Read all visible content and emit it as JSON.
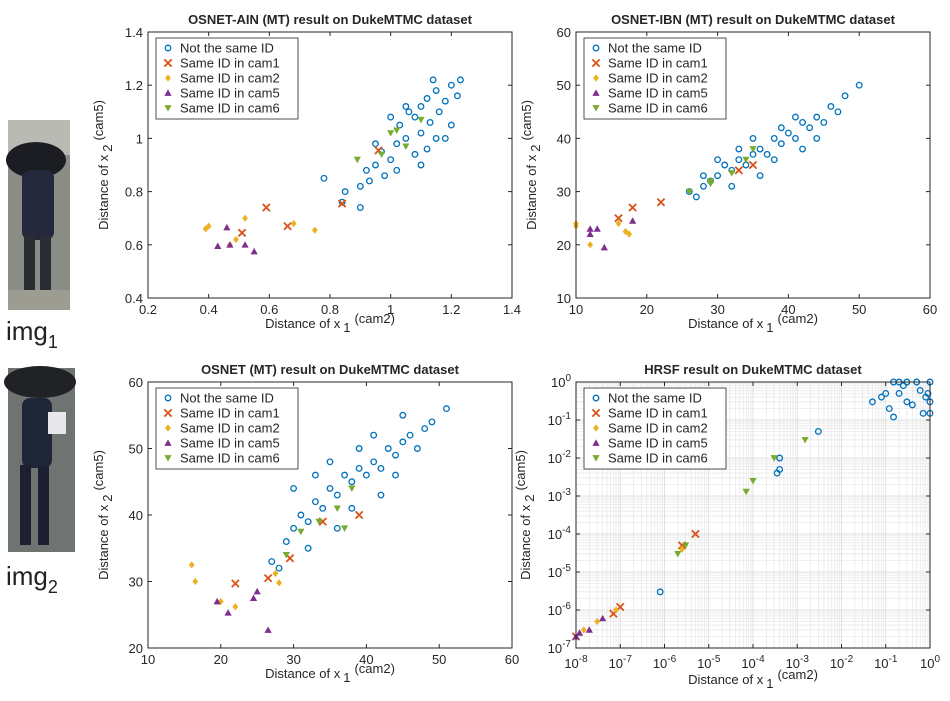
{
  "chart_data": [
    {
      "type": "scatter",
      "title": "OSNET-AIN (MT) result on DukeMTMC dataset",
      "xlabel": "Distance of x",
      "xlabel_subscript": "1",
      "xlabel_superscript": "(cam2)",
      "ylabel": "Distance of x",
      "ylabel_subscript": "2",
      "ylabel_superscript": "(cam5)",
      "xlim": [
        0.2,
        1.4
      ],
      "ylim": [
        0.4,
        1.4
      ],
      "xticks": [
        0.2,
        0.4,
        0.6,
        0.8,
        1,
        1.2,
        1.4
      ],
      "yticks": [
        0.4,
        0.6,
        0.8,
        1,
        1.2,
        1.4
      ],
      "grid": false,
      "legend": "upper-left",
      "series": [
        {
          "name": "Not the same ID",
          "color": "#0072bd",
          "marker": "circle",
          "x": [
            0.85,
            0.9,
            0.92,
            0.95,
            0.97,
            0.98,
            1.0,
            1.02,
            1.03,
            1.05,
            1.06,
            1.08,
            1.1,
            1.1,
            1.12,
            1.13,
            1.15,
            1.16,
            1.18,
            1.2,
            1.22,
            1.2,
            1.15,
            1.12,
            1.08,
            1.05,
            1.0,
            0.95,
            0.93,
            1.1,
            1.14,
            1.18,
            1.02,
            0.78,
            0.84,
            0.9,
            1.23
          ],
          "values": [
            0.8,
            0.82,
            0.88,
            0.9,
            0.95,
            0.86,
            0.92,
            0.98,
            1.05,
            1.0,
            1.1,
            1.08,
            1.12,
            1.02,
            1.15,
            1.06,
            1.18,
            1.1,
            1.14,
            1.2,
            1.16,
            1.05,
            1.0,
            0.96,
            0.94,
            1.12,
            1.08,
            0.98,
            0.84,
            0.9,
            1.22,
            1.0,
            0.88,
            0.85,
            0.76,
            0.74,
            1.22
          ]
        },
        {
          "name": "Same ID in cam1",
          "color": "#d95319",
          "marker": "x",
          "x": [
            0.59,
            0.51,
            0.66,
            0.84,
            0.96
          ],
          "values": [
            0.74,
            0.645,
            0.67,
            0.755,
            0.955
          ]
        },
        {
          "name": "Same ID in cam2",
          "color": "#edb120",
          "marker": "diamond",
          "x": [
            0.4,
            0.39,
            0.52,
            0.49,
            0.68,
            0.75,
            0.47
          ],
          "values": [
            0.67,
            0.66,
            0.7,
            0.62,
            0.68,
            0.655,
            0.6
          ]
        },
        {
          "name": "Same ID in cam5",
          "color": "#7e2f8e",
          "marker": "triangle-up",
          "x": [
            0.43,
            0.47,
            0.46,
            0.52,
            0.55
          ],
          "values": [
            0.595,
            0.6,
            0.665,
            0.6,
            0.575
          ]
        },
        {
          "name": "Same ID in cam6",
          "color": "#77ac30",
          "marker": "triangle-down",
          "x": [
            0.89,
            1.0,
            1.02,
            1.05,
            1.1,
            0.97
          ],
          "values": [
            0.92,
            1.02,
            1.03,
            0.97,
            1.07,
            0.94
          ]
        }
      ]
    },
    {
      "type": "scatter",
      "title": "OSNET-IBN (MT) result on DukeMTMC dataset",
      "xlabel": "Distance of x",
      "xlabel_subscript": "1",
      "xlabel_superscript": "(cam2)",
      "ylabel": "Distance of x",
      "ylabel_subscript": "2",
      "ylabel_superscript": "(cam5)",
      "xlim": [
        10,
        60
      ],
      "ylim": [
        10,
        60
      ],
      "xticks": [
        10,
        20,
        30,
        40,
        50,
        60
      ],
      "yticks": [
        10,
        20,
        30,
        40,
        50,
        60
      ],
      "grid": false,
      "legend": "upper-left",
      "series": [
        {
          "name": "Not the same ID",
          "color": "#0072bd",
          "marker": "circle",
          "x": [
            26,
            27,
            28,
            29,
            30,
            31,
            32,
            33,
            34,
            35,
            36,
            37,
            38,
            39,
            40,
            41,
            42,
            43,
            44,
            45,
            46,
            47,
            48,
            50,
            30,
            33,
            36,
            39,
            42,
            35,
            38,
            41,
            44,
            32,
            28
          ],
          "values": [
            30,
            29,
            31,
            32,
            33,
            35,
            34,
            36,
            35,
            37,
            38,
            37,
            40,
            39,
            41,
            40,
            43,
            42,
            44,
            43,
            46,
            45,
            48,
            50,
            36,
            38,
            33,
            42,
            38,
            40,
            36,
            44,
            40,
            31,
            33
          ]
        },
        {
          "name": "Same ID in cam1",
          "color": "#d95319",
          "marker": "x",
          "x": [
            22,
            18,
            16,
            33,
            35
          ],
          "values": [
            28,
            27,
            25,
            34,
            35
          ]
        },
        {
          "name": "Same ID in cam2",
          "color": "#edb120",
          "marker": "diamond",
          "x": [
            10,
            10,
            12,
            17,
            16,
            17.5
          ],
          "values": [
            24,
            23.5,
            20,
            22.5,
            24,
            22
          ]
        },
        {
          "name": "Same ID in cam5",
          "color": "#7e2f8e",
          "marker": "triangle-up",
          "x": [
            12,
            13,
            14,
            18,
            12
          ],
          "values": [
            22,
            23,
            19.5,
            24.5,
            23
          ]
        },
        {
          "name": "Same ID in cam6",
          "color": "#77ac30",
          "marker": "triangle-down",
          "x": [
            26,
            29,
            32,
            34,
            35,
            29
          ],
          "values": [
            30,
            32,
            33.5,
            36,
            38,
            31.5
          ]
        }
      ]
    },
    {
      "type": "scatter",
      "title": "OSNET (MT) result on DukeMTMC dataset",
      "xlabel": "Distance of x",
      "xlabel_subscript": "1",
      "xlabel_superscript": "(cam2)",
      "ylabel": "Distance of x",
      "ylabel_subscript": "2",
      "ylabel_superscript": "(cam5)",
      "xlim": [
        10,
        60
      ],
      "ylim": [
        20,
        60
      ],
      "xticks": [
        10,
        20,
        30,
        40,
        50,
        60
      ],
      "yticks": [
        20,
        30,
        40,
        50,
        60
      ],
      "grid": false,
      "legend": "upper-left",
      "series": [
        {
          "name": "Not the same ID",
          "color": "#0072bd",
          "marker": "circle",
          "x": [
            27,
            28,
            29,
            30,
            31,
            32,
            33,
            34,
            35,
            36,
            37,
            38,
            39,
            40,
            41,
            42,
            43,
            44,
            45,
            46,
            47,
            48,
            49,
            51,
            30,
            33,
            36,
            39,
            42,
            35,
            38,
            41,
            44,
            32,
            45
          ],
          "values": [
            33,
            32,
            36,
            38,
            40,
            39,
            42,
            41,
            44,
            43,
            46,
            45,
            47,
            46,
            48,
            47,
            50,
            49,
            51,
            52,
            50,
            53,
            54,
            56,
            44,
            46,
            38,
            50,
            43,
            48,
            41,
            52,
            46,
            35,
            55
          ]
        },
        {
          "name": "Same ID in cam1",
          "color": "#d95319",
          "marker": "x",
          "x": [
            22,
            26.5,
            29.5,
            34,
            39
          ],
          "values": [
            29.7,
            30.5,
            33.5,
            39,
            40
          ]
        },
        {
          "name": "Same ID in cam2",
          "color": "#edb120",
          "marker": "diamond",
          "x": [
            16,
            16.5,
            22,
            27.5,
            28,
            20
          ],
          "values": [
            32.5,
            30,
            26.2,
            31.2,
            29.8,
            27
          ]
        },
        {
          "name": "Same ID in cam5",
          "color": "#7e2f8e",
          "marker": "triangle-up",
          "x": [
            19.5,
            21,
            25,
            24.5,
            26.5
          ],
          "values": [
            27,
            25.3,
            28.5,
            27.5,
            22.7
          ]
        },
        {
          "name": "Same ID in cam6",
          "color": "#77ac30",
          "marker": "triangle-down",
          "x": [
            29,
            31,
            33.5,
            36,
            37,
            38
          ],
          "values": [
            34,
            37.5,
            39,
            41,
            38,
            44
          ]
        }
      ]
    },
    {
      "type": "scatter",
      "title": "HRSF result on DukeMTMC dataset",
      "xlabel": "Distance of x",
      "xlabel_subscript": "1",
      "xlabel_superscript": "(cam2)",
      "ylabel": "Distance of x",
      "ylabel_subscript": "2",
      "ylabel_superscript": "(cam5)",
      "log_x": true,
      "log_y": true,
      "xlim": [
        1e-08,
        1
      ],
      "ylim": [
        1e-07,
        1
      ],
      "xticks": [
        {
          "value": 1e-08,
          "label": "10",
          "exponent": "-8"
        },
        {
          "value": 1e-07,
          "label": "10",
          "exponent": "-7"
        },
        {
          "value": 1e-06,
          "label": "10",
          "exponent": "-6"
        },
        {
          "value": 1e-05,
          "label": "10",
          "exponent": "-5"
        },
        {
          "value": 0.0001,
          "label": "10",
          "exponent": "-4"
        },
        {
          "value": 0.001,
          "label": "10",
          "exponent": "-3"
        },
        {
          "value": 0.01,
          "label": "10",
          "exponent": "-2"
        },
        {
          "value": 0.1,
          "label": "10",
          "exponent": "-1"
        },
        {
          "value": 1,
          "label": "10",
          "exponent": "0"
        }
      ],
      "yticks": [
        {
          "value": 1e-07,
          "label": "10",
          "exponent": "-7"
        },
        {
          "value": 1e-06,
          "label": "10",
          "exponent": "-6"
        },
        {
          "value": 1e-05,
          "label": "10",
          "exponent": "-5"
        },
        {
          "value": 0.0001,
          "label": "10",
          "exponent": "-4"
        },
        {
          "value": 0.001,
          "label": "10",
          "exponent": "-3"
        },
        {
          "value": 0.01,
          "label": "10",
          "exponent": "-2"
        },
        {
          "value": 0.1,
          "label": "10",
          "exponent": "-1"
        },
        {
          "value": 1,
          "label": "10",
          "exponent": "0"
        }
      ],
      "grid": true,
      "minor_grid": true,
      "legend": "upper-left",
      "series": [
        {
          "name": "Not the same ID",
          "color": "#0072bd",
          "marker": "circle",
          "x": [
            8e-07,
            0.0004,
            0.00035,
            0.0004,
            0.003,
            0.05,
            0.08,
            0.1,
            0.12,
            0.15,
            0.2,
            0.2,
            0.3,
            0.3,
            0.4,
            0.5,
            0.6,
            0.7,
            0.8,
            0.9,
            1,
            1,
            1,
            0.25,
            0.15
          ],
          "values": [
            3e-06,
            0.01,
            0.004,
            0.005,
            0.05,
            0.3,
            0.4,
            0.5,
            0.2,
            0.12,
            1,
            0.5,
            1,
            0.3,
            0.25,
            1,
            0.6,
            0.15,
            0.4,
            0.5,
            1,
            0.3,
            0.15,
            0.8,
            1
          ]
        },
        {
          "name": "Same ID in cam1",
          "color": "#d95319",
          "marker": "x",
          "x": [
            1e-08,
            1e-07,
            5e-06,
            2.5e-06,
            7e-08
          ],
          "values": [
            2e-07,
            1.2e-06,
            0.0001,
            5e-05,
            8e-07
          ]
        },
        {
          "name": "Same ID in cam2",
          "color": "#edb120",
          "marker": "diamond",
          "x": [
            1.5e-08,
            3e-08,
            8e-08,
            2.5e-06
          ],
          "values": [
            3e-07,
            5e-07,
            1e-06,
            4e-05
          ]
        },
        {
          "name": "Same ID in cam5",
          "color": "#7e2f8e",
          "marker": "triangle-up",
          "x": [
            1e-08,
            2e-08,
            4e-08,
            1.2e-08
          ],
          "values": [
            2e-07,
            3e-07,
            6e-07,
            2.5e-07
          ]
        },
        {
          "name": "Same ID in cam6",
          "color": "#77ac30",
          "marker": "triangle-down",
          "x": [
            2e-06,
            3e-06,
            7e-05,
            0.0001,
            0.0003,
            0.0015
          ],
          "values": [
            3e-05,
            5e-05,
            0.0013,
            0.0025,
            0.01,
            0.03
          ]
        }
      ]
    }
  ],
  "images": [
    {
      "label": "img",
      "subscript": "1"
    },
    {
      "label": "img",
      "subscript": "2"
    }
  ]
}
